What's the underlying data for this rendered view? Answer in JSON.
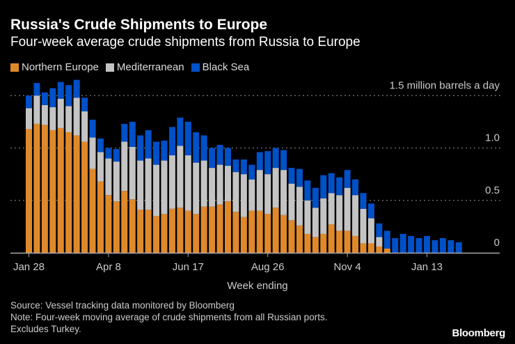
{
  "chart_data": {
    "type": "bar",
    "stacked": true,
    "title": "Russia's Crude Shipments to Europe",
    "subtitle": "Four-week average crude shipments from Russia to Europe",
    "xlabel": "Week ending",
    "ylabel": "1.5 million barrels a day",
    "ylim": [
      0,
      1.5
    ],
    "yticks": [
      {
        "value": 0,
        "label": "0"
      },
      {
        "value": 0.5,
        "label": "0.5"
      },
      {
        "value": 1.0,
        "label": "1.0"
      },
      {
        "value": 1.5,
        "label": "1.5 million barrels a day"
      }
    ],
    "xticks": [
      {
        "category": "Jan 28",
        "label": "Jan 28"
      },
      {
        "category": "Apr 8",
        "label": "Apr 8"
      },
      {
        "category": "Jun 17",
        "label": "Jun 17"
      },
      {
        "category": "Aug 26",
        "label": "Aug 26"
      },
      {
        "category": "Nov 4",
        "label": "Nov 4"
      },
      {
        "category": "Jan 13",
        "label": "Jan 13"
      }
    ],
    "grid": true,
    "legend_position": "top-left",
    "categories": [
      "Jan 28",
      "Feb 4",
      "Feb 11",
      "Feb 18",
      "Feb 25",
      "Mar 4",
      "Mar 11",
      "Mar 18",
      "Mar 25",
      "Apr 1",
      "Apr 8",
      "Apr 15",
      "Apr 22",
      "Apr 29",
      "May 6",
      "May 13",
      "May 20",
      "May 27",
      "Jun 3",
      "Jun 10",
      "Jun 17",
      "Jun 24",
      "Jul 1",
      "Jul 8",
      "Jul 15",
      "Jul 22",
      "Jul 29",
      "Aug 5",
      "Aug 12",
      "Aug 19",
      "Aug 26",
      "Sep 2",
      "Sep 9",
      "Sep 16",
      "Sep 23",
      "Sep 30",
      "Oct 7",
      "Oct 14",
      "Oct 21",
      "Oct 28",
      "Nov 4",
      "Nov 11",
      "Nov 18",
      "Nov 25",
      "Dec 2",
      "Dec 9",
      "Dec 16",
      "Dec 23",
      "Dec 30",
      "Jan 6",
      "Jan 13",
      "Jan 20",
      "Jan 27",
      "Feb 3",
      "Feb 10"
    ],
    "series": [
      {
        "name": "Northern Europe",
        "color": "#e0892a",
        "values": [
          1.18,
          1.23,
          1.22,
          1.17,
          1.19,
          1.15,
          1.12,
          1.06,
          0.8,
          0.68,
          0.55,
          0.49,
          0.59,
          0.51,
          0.41,
          0.41,
          0.35,
          0.37,
          0.42,
          0.43,
          0.4,
          0.37,
          0.44,
          0.44,
          0.46,
          0.49,
          0.39,
          0.34,
          0.4,
          0.4,
          0.37,
          0.43,
          0.36,
          0.31,
          0.26,
          0.18,
          0.15,
          0.18,
          0.27,
          0.21,
          0.21,
          0.16,
          0.09,
          0.09,
          0.06,
          0.04,
          0,
          0,
          0,
          0,
          0,
          0,
          0,
          0,
          0
        ]
      },
      {
        "name": "Mediterranean",
        "color": "#c4c4c4",
        "values": [
          0.2,
          0.27,
          0.19,
          0.22,
          0.28,
          0.25,
          0.36,
          0.29,
          0.3,
          0.28,
          0.35,
          0.38,
          0.47,
          0.5,
          0.47,
          0.49,
          0.49,
          0.51,
          0.51,
          0.59,
          0.53,
          0.49,
          0.44,
          0.37,
          0.38,
          0.34,
          0.38,
          0.41,
          0.3,
          0.39,
          0.38,
          0.38,
          0.43,
          0.35,
          0.37,
          0.32,
          0.28,
          0.34,
          0.3,
          0.34,
          0.41,
          0.39,
          0.33,
          0.24,
          0.09,
          0,
          0,
          0,
          0,
          0,
          0,
          0,
          0,
          0,
          0
        ]
      },
      {
        "name": "Black Sea",
        "color": "#0050c8",
        "values": [
          0.12,
          0.12,
          0.12,
          0.18,
          0.16,
          0.2,
          0.17,
          0.13,
          0.17,
          0.13,
          0.1,
          0.12,
          0.17,
          0.24,
          0.24,
          0.27,
          0.22,
          0.19,
          0.27,
          0.27,
          0.32,
          0.29,
          0.24,
          0.19,
          0.19,
          0.17,
          0.12,
          0.14,
          0.14,
          0.17,
          0.22,
          0.19,
          0.19,
          0.15,
          0.17,
          0.19,
          0.19,
          0.22,
          0.19,
          0.17,
          0.17,
          0.15,
          0.15,
          0.14,
          0.13,
          0.17,
          0.14,
          0.18,
          0.16,
          0.14,
          0.16,
          0.12,
          0.14,
          0.12,
          0.1
        ]
      }
    ]
  },
  "notes": {
    "source": "Source: Vessel tracking data monitored by Bloomberg",
    "note": "Note: Four-week moving average of crude shipments from all Russian ports.",
    "note2": "Excludes Turkey."
  },
  "logo": "Bloomberg"
}
